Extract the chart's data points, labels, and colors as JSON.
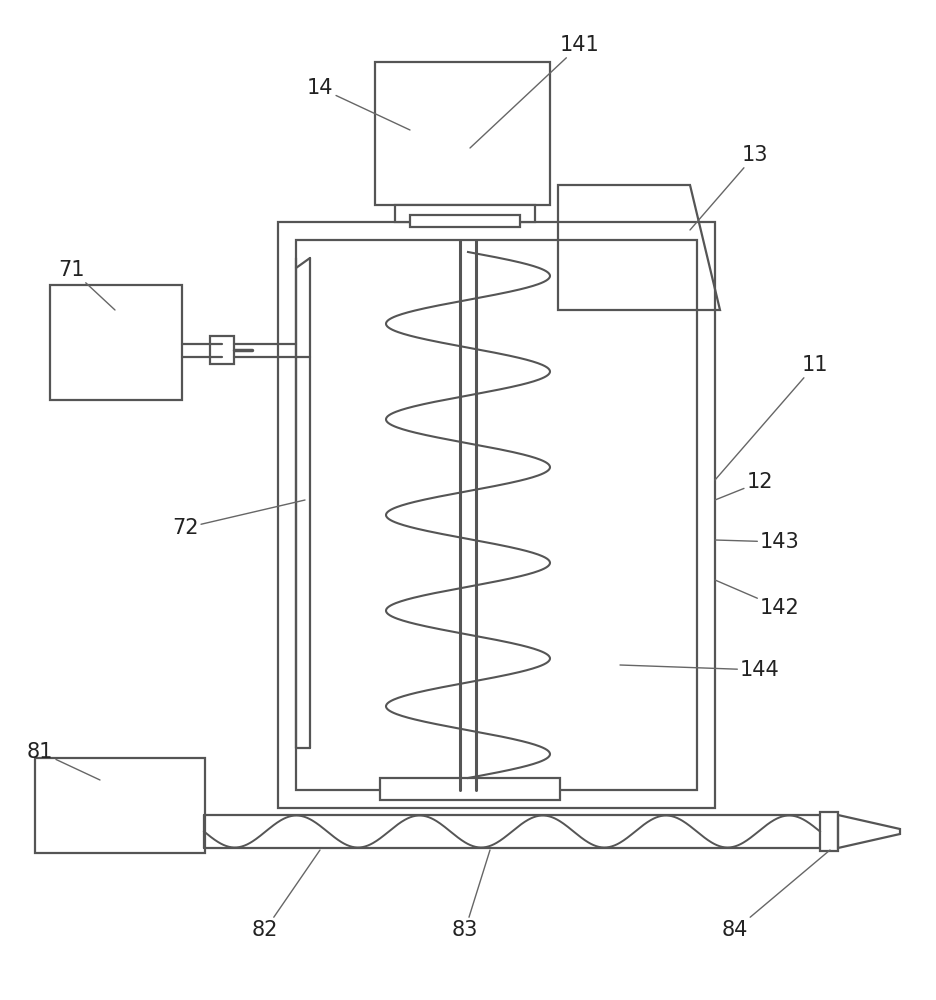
{
  "bg_color": "#ffffff",
  "lc": "#555555",
  "lw": 1.6,
  "label_fs": 15,
  "label_color": "#222222",
  "figsize": [
    9.36,
    10.0
  ],
  "dpi": 100
}
